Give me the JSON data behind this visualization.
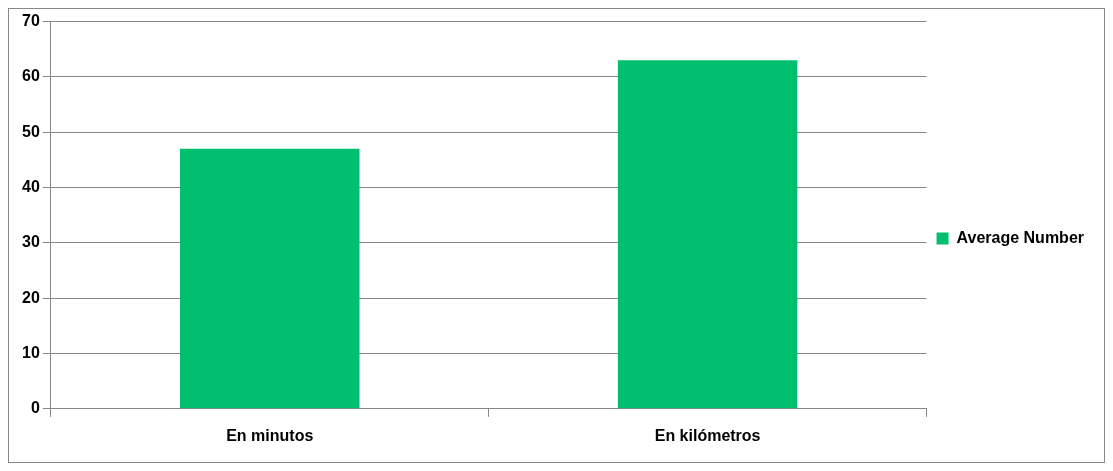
{
  "chart_data": {
    "type": "bar",
    "categories": [
      "En minutos",
      "En kilómetros"
    ],
    "series": [
      {
        "name": "Average Number",
        "color": "#00c070",
        "values": [
          47,
          63
        ]
      }
    ],
    "ylim": [
      0,
      70
    ],
    "yticks": [
      0,
      10,
      20,
      30,
      40,
      50,
      60,
      70
    ],
    "grid": "y",
    "legend": "right"
  }
}
